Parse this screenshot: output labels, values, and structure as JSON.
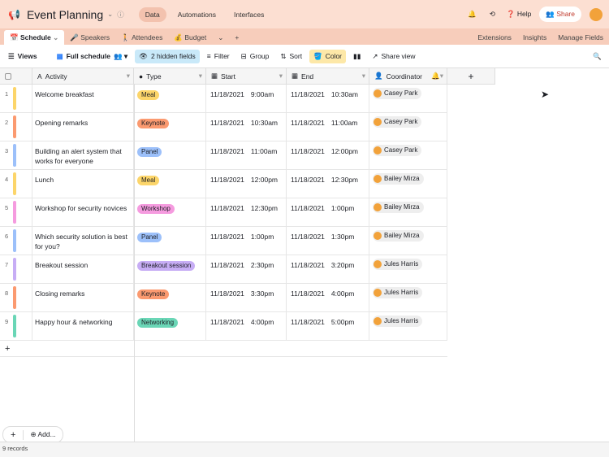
{
  "header": {
    "title": "Event Planning",
    "nav": [
      "Data",
      "Automations",
      "Interfaces"
    ],
    "help": "Help",
    "share": "Share"
  },
  "tabs": [
    "Schedule",
    "Speakers",
    "Attendees",
    "Budget"
  ],
  "tab_right": [
    "Extensions",
    "Insights",
    "Manage Fields"
  ],
  "toolbar": {
    "views": "Views",
    "view_name": "Full schedule",
    "hidden": "2 hidden fields",
    "filter": "Filter",
    "group": "Group",
    "sort": "Sort",
    "color": "Color",
    "share_view": "Share view"
  },
  "columns": [
    "Activity",
    "Type",
    "Start",
    "End",
    "Coordinator"
  ],
  "type_colors": {
    "Meal": "#fcd56a",
    "Keynote": "#fb9a70",
    "Panel": "#9cc0fa",
    "Workshop": "#f59bdf",
    "Breakout session": "#c7adf5",
    "Networking": "#6ad6b6"
  },
  "rows": [
    {
      "n": "1",
      "activity": "Welcome breakfast",
      "type": "Meal",
      "sd": "11/18/2021",
      "st": "9:00am",
      "ed": "11/18/2021",
      "et": "10:30am",
      "coord": "Casey Park"
    },
    {
      "n": "2",
      "activity": "Opening remarks",
      "type": "Keynote",
      "sd": "11/18/2021",
      "st": "10:30am",
      "ed": "11/18/2021",
      "et": "11:00am",
      "coord": "Casey Park"
    },
    {
      "n": "3",
      "activity": "Building an alert system that works for everyone",
      "type": "Panel",
      "sd": "11/18/2021",
      "st": "11:00am",
      "ed": "11/18/2021",
      "et": "12:00pm",
      "coord": "Casey Park"
    },
    {
      "n": "4",
      "activity": "Lunch",
      "type": "Meal",
      "sd": "11/18/2021",
      "st": "12:00pm",
      "ed": "11/18/2021",
      "et": "12:30pm",
      "coord": "Bailey Mirza"
    },
    {
      "n": "5",
      "activity": "Workshop for security novices",
      "type": "Workshop",
      "sd": "11/18/2021",
      "st": "12:30pm",
      "ed": "11/18/2021",
      "et": "1:00pm",
      "coord": "Bailey Mirza"
    },
    {
      "n": "6",
      "activity": "Which security solution is best for you?",
      "type": "Panel",
      "sd": "11/18/2021",
      "st": "1:00pm",
      "ed": "11/18/2021",
      "et": "1:30pm",
      "coord": "Bailey Mirza"
    },
    {
      "n": "7",
      "activity": "Breakout session",
      "type": "Breakout session",
      "sd": "11/18/2021",
      "st": "2:30pm",
      "ed": "11/18/2021",
      "et": "3:20pm",
      "coord": "Jules Harris"
    },
    {
      "n": "8",
      "activity": "Closing remarks",
      "type": "Keynote",
      "sd": "11/18/2021",
      "st": "3:30pm",
      "ed": "11/18/2021",
      "et": "4:00pm",
      "coord": "Jules Harris"
    },
    {
      "n": "9",
      "activity": "Happy hour & networking",
      "type": "Networking",
      "sd": "11/18/2021",
      "st": "4:00pm",
      "ed": "11/18/2021",
      "et": "5:00pm",
      "coord": "Jules Harris"
    }
  ],
  "footer": {
    "add": "Add...",
    "records": "9 records"
  }
}
